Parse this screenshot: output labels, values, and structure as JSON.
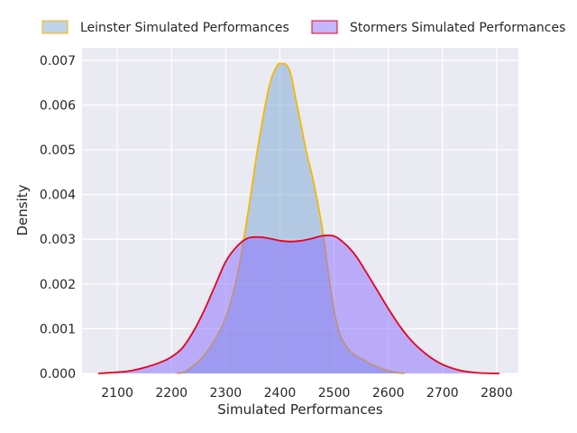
{
  "chart_data": {
    "type": "area",
    "xlabel": "Simulated Performances",
    "ylabel": "Density",
    "xlim": [
      2035,
      2840
    ],
    "ylim": [
      0,
      0.00728
    ],
    "xticks": [
      2100,
      2200,
      2300,
      2400,
      2500,
      2600,
      2700,
      2800
    ],
    "yticks": [
      0.0,
      0.001,
      0.002,
      0.003,
      0.004,
      0.005,
      0.006,
      0.007
    ],
    "ytick_labels": [
      "0.000",
      "0.001",
      "0.002",
      "0.003",
      "0.004",
      "0.005",
      "0.006",
      "0.007"
    ],
    "grid": true,
    "legend_placement": "top",
    "series": [
      {
        "name": "Leinster Simulated Performances",
        "fill": "#7ba7d4",
        "fill_opacity": 0.5,
        "stroke": "#f5b800",
        "x": [
          2210,
          2225,
          2240,
          2260,
          2280,
          2300,
          2320,
          2340,
          2360,
          2380,
          2395,
          2405,
          2412,
          2420,
          2430,
          2440,
          2450,
          2460,
          2470,
          2480,
          2490,
          2500,
          2510,
          2520,
          2530,
          2540,
          2555,
          2570,
          2590,
          2610,
          2630
        ],
        "y": [
          0,
          4e-05,
          0.00017,
          0.0004,
          0.00075,
          0.00125,
          0.0021,
          0.0035,
          0.0051,
          0.0064,
          0.00688,
          0.00692,
          0.0069,
          0.0067,
          0.0061,
          0.0055,
          0.0049,
          0.0044,
          0.0038,
          0.0031,
          0.0022,
          0.0014,
          0.0009,
          0.00065,
          0.0005,
          0.0004,
          0.0003,
          0.0002,
          0.0001,
          3e-05,
          0
        ]
      },
      {
        "name": "Stormers Simulated Performances",
        "fill": "#8a6bff",
        "fill_opacity": 0.5,
        "stroke": "#e8001c",
        "x": [
          2065,
          2090,
          2120,
          2150,
          2180,
          2200,
          2220,
          2240,
          2260,
          2280,
          2300,
          2320,
          2340,
          2360,
          2380,
          2400,
          2420,
          2440,
          2460,
          2480,
          2500,
          2520,
          2540,
          2560,
          2580,
          2600,
          2620,
          2640,
          2660,
          2680,
          2700,
          2720,
          2740,
          2770,
          2805
        ],
        "y": [
          0,
          2e-05,
          5e-05,
          0.00013,
          0.00025,
          0.00037,
          0.00057,
          0.00093,
          0.0014,
          0.00195,
          0.0025,
          0.00283,
          0.00302,
          0.00305,
          0.00302,
          0.00297,
          0.00295,
          0.00297,
          0.00302,
          0.00308,
          0.00307,
          0.0029,
          0.00263,
          0.00225,
          0.00185,
          0.00145,
          0.00108,
          0.00077,
          0.00053,
          0.00034,
          0.0002,
          0.00011,
          5e-05,
          1e-05,
          0
        ]
      }
    ]
  }
}
